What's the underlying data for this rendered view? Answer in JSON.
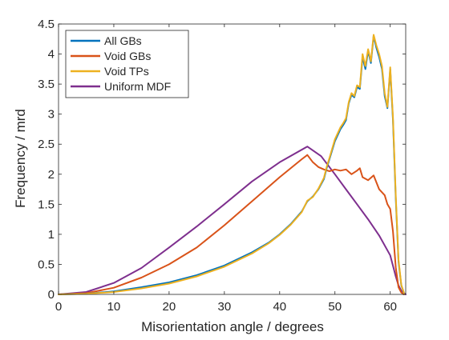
{
  "chart_data": {
    "type": "line",
    "title": "",
    "xlabel": "Misorientation angle / degrees",
    "ylabel": "Frequency / mrd",
    "xlim": [
      0,
      62.8
    ],
    "ylim": [
      0,
      4.5
    ],
    "xticks": [
      0,
      10,
      20,
      30,
      40,
      50,
      60
    ],
    "xtick_labels": [
      "0",
      "10",
      "20",
      "30",
      "40",
      "50",
      "60"
    ],
    "yticks": [
      0,
      0.5,
      1,
      1.5,
      2,
      2.5,
      3,
      3.5,
      4,
      4.5
    ],
    "ytick_labels": [
      "0",
      "0.5",
      "1",
      "1.5",
      "2",
      "2.5",
      "3",
      "3.5",
      "4",
      "4.5"
    ],
    "grid": false,
    "legend_position": "top-left",
    "series": [
      {
        "name": "All GBs",
        "color": "#0072BD",
        "x": [
          0,
          5,
          10,
          15,
          20,
          25,
          30,
          35,
          38,
          40,
          42,
          44,
          45,
          46,
          47,
          48,
          48.5,
          49,
          50,
          51,
          51.5,
          52,
          52.5,
          53,
          53.5,
          54,
          54.5,
          55,
          55.5,
          56,
          56.5,
          57,
          57.5,
          58,
          58.5,
          59,
          59.5,
          60,
          60.5,
          61,
          61.5,
          62,
          62.5
        ],
        "y": [
          0,
          0.01,
          0.05,
          0.12,
          0.2,
          0.32,
          0.48,
          0.7,
          0.86,
          1.0,
          1.17,
          1.38,
          1.55,
          1.63,
          1.75,
          1.92,
          2.1,
          2.25,
          2.55,
          2.75,
          2.82,
          2.9,
          3.18,
          3.32,
          3.28,
          3.45,
          3.42,
          3.95,
          3.75,
          4.05,
          3.85,
          4.3,
          4.1,
          3.95,
          3.75,
          3.3,
          3.1,
          3.75,
          2.9,
          1.6,
          0.55,
          0.15,
          0.02
        ]
      },
      {
        "name": "Void GBs",
        "color": "#D95319",
        "x": [
          0,
          5,
          10,
          15,
          20,
          25,
          30,
          35,
          40,
          44,
          45,
          46,
          47,
          48,
          49,
          50,
          51,
          52,
          53,
          54,
          54.5,
          55,
          56,
          57,
          58,
          59,
          59.5,
          60,
          60.5,
          61,
          61.5,
          62,
          62.5
        ],
        "y": [
          0,
          0.02,
          0.11,
          0.28,
          0.5,
          0.78,
          1.15,
          1.55,
          1.95,
          2.25,
          2.32,
          2.2,
          2.12,
          2.08,
          2.05,
          2.08,
          2.06,
          2.08,
          2.0,
          2.06,
          2.1,
          1.95,
          1.9,
          1.98,
          1.75,
          1.65,
          1.5,
          1.42,
          1.05,
          0.45,
          0.12,
          0.03,
          0.0
        ]
      },
      {
        "name": "Void TPs",
        "color": "#EDB120",
        "x": [
          0,
          5,
          10,
          15,
          20,
          25,
          30,
          35,
          38,
          40,
          42,
          44,
          45,
          46,
          47,
          48,
          48.5,
          49,
          50,
          51,
          51.5,
          52,
          52.5,
          53,
          53.5,
          54,
          54.5,
          55,
          55.5,
          56,
          56.5,
          57,
          57.5,
          58,
          58.5,
          59,
          59.5,
          60,
          60.5,
          61,
          61.5,
          62,
          62.5
        ],
        "y": [
          0,
          0.01,
          0.04,
          0.1,
          0.18,
          0.3,
          0.46,
          0.68,
          0.85,
          0.99,
          1.16,
          1.37,
          1.56,
          1.62,
          1.76,
          1.94,
          2.12,
          2.27,
          2.58,
          2.78,
          2.85,
          2.93,
          3.2,
          3.35,
          3.3,
          3.48,
          3.45,
          4.0,
          3.8,
          4.08,
          3.88,
          4.32,
          4.14,
          4.0,
          3.8,
          3.35,
          3.12,
          3.78,
          2.95,
          1.65,
          0.58,
          0.16,
          0.02
        ]
      },
      {
        "name": "Uniform MDF",
        "color": "#7E2F8E",
        "x": [
          0,
          5,
          10,
          15,
          20,
          25,
          30,
          35,
          40,
          45,
          47.5,
          50,
          52,
          54,
          56,
          58,
          60,
          61,
          61.5,
          62,
          62.8
        ],
        "y": [
          0,
          0.04,
          0.19,
          0.44,
          0.78,
          1.13,
          1.5,
          1.88,
          2.2,
          2.46,
          2.3,
          2.0,
          1.75,
          1.5,
          1.25,
          0.98,
          0.65,
          0.3,
          0.15,
          0.06,
          0.0
        ]
      }
    ]
  }
}
